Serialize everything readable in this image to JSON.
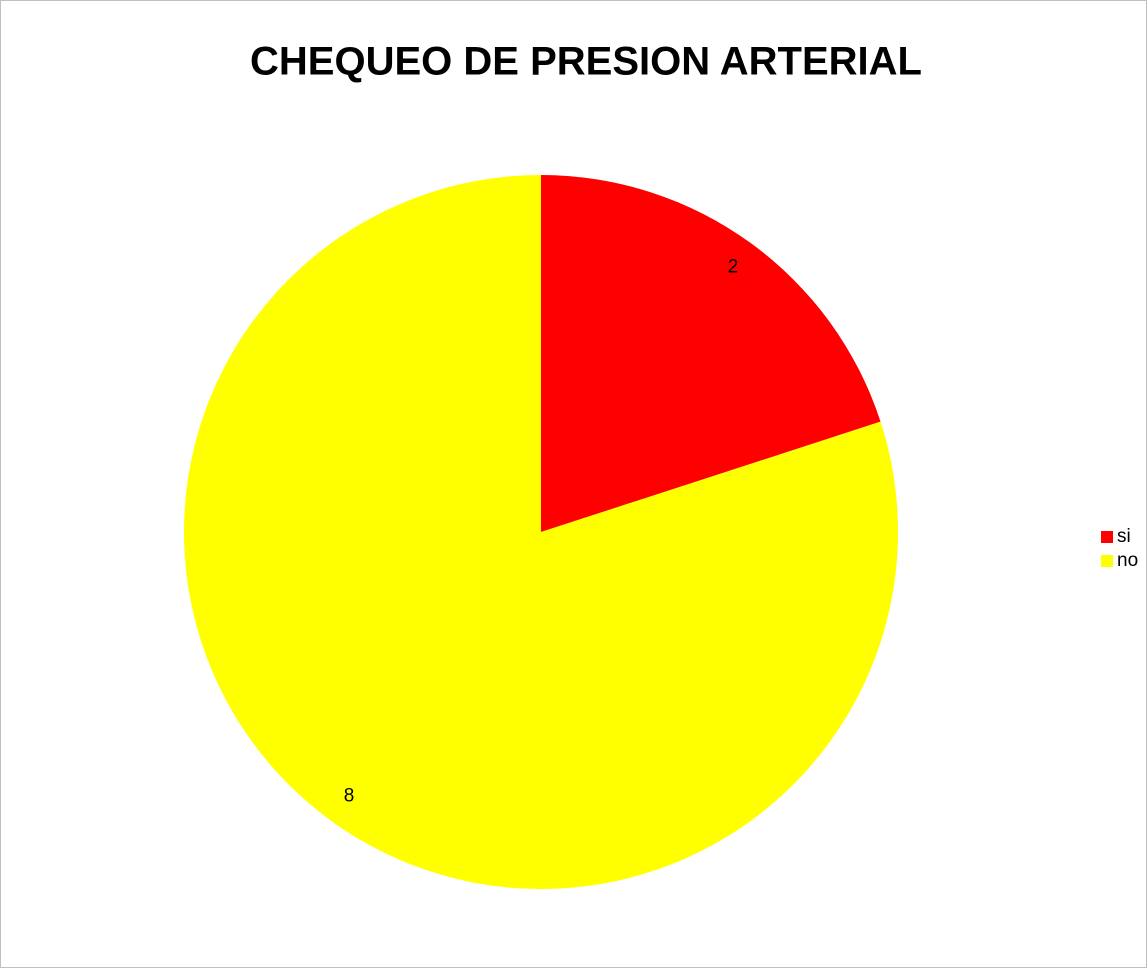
{
  "chart_data": {
    "type": "pie",
    "title": "CHEQUEO DE PRESION ARTERIAL",
    "categories": [
      "si",
      "no"
    ],
    "values": [
      2,
      8
    ],
    "colors": [
      "#ff0000",
      "#ffff00"
    ],
    "legend": "right"
  }
}
